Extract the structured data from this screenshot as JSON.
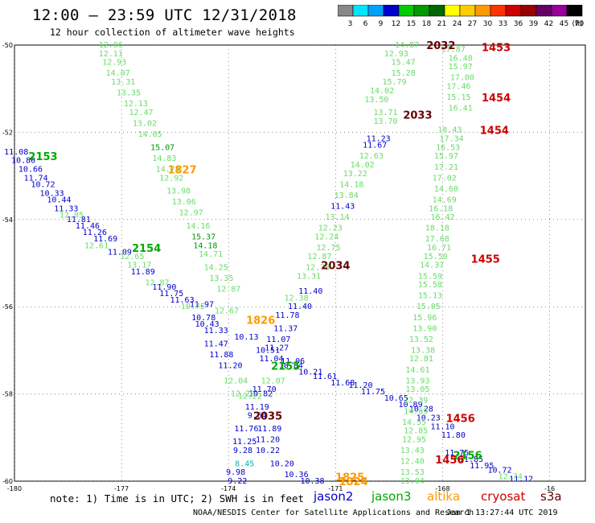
{
  "header": {
    "title": "12:00 – 23:59 UTC 12/31/2018",
    "subtitle": "12 hour collection of altimeter wave heights"
  },
  "colorbar": {
    "unit": "(ft)",
    "ticks": [
      "3",
      "6",
      "9",
      "12",
      "15",
      "18",
      "21",
      "24",
      "27",
      "30",
      "33",
      "36",
      "39",
      "42",
      "45",
      "70"
    ],
    "colors": [
      "#888888",
      "#00e5ff",
      "#00a0ff",
      "#0000cc",
      "#00cc00",
      "#009900",
      "#006600",
      "#ffff00",
      "#ffcc00",
      "#ff9900",
      "#ff3300",
      "#cc0000",
      "#990000",
      "#660066",
      "#990099",
      "#000000"
    ]
  },
  "axes": {
    "lat_labels": [
      "-50",
      "-52",
      "-54",
      "-56",
      "-58",
      "-60"
    ],
    "lon_labels": [
      "-180",
      "-177",
      "-174",
      "-171",
      "-168",
      "-16"
    ]
  },
  "colors": {
    "jason2": "#0000cc",
    "jason3": "#00aa00",
    "altika": "#ff9900",
    "cryosat": "#cc0000",
    "s3a": "#660000",
    "light": "#66dd66"
  },
  "passes": [
    {
      "label": "2153",
      "lat": -52.55,
      "lon": -179.2,
      "sat": "jason3"
    },
    {
      "label": "2154",
      "lat": -54.65,
      "lon": -176.3,
      "sat": "jason3"
    },
    {
      "label": "2155",
      "lat": -57.35,
      "lon": -172.4,
      "sat": "jason3"
    },
    {
      "label": "2156",
      "lat": -59.4,
      "lon": -167.3,
      "sat": "jason3"
    },
    {
      "label": "1827",
      "lat": -52.85,
      "lon": -175.3,
      "sat": "altika"
    },
    {
      "label": "1826",
      "lat": -56.3,
      "lon": -173.1,
      "sat": "altika"
    },
    {
      "label": "1825",
      "lat": -59.9,
      "lon": -170.6,
      "sat": "altika"
    },
    {
      "label": "1824",
      "lat": -60.0,
      "lon": -170.5,
      "sat": "altika"
    },
    {
      "label": "2032",
      "lat": -50.0,
      "lon": -168.05,
      "sat": "s3a"
    },
    {
      "label": "2033",
      "lat": -51.6,
      "lon": -168.7,
      "sat": "s3a"
    },
    {
      "label": "2034",
      "lat": -55.05,
      "lon": -171.0,
      "sat": "s3a"
    },
    {
      "label": "2035",
      "lat": -58.5,
      "lon": -172.9,
      "sat": "s3a"
    },
    {
      "label": "1453",
      "lat": -50.05,
      "lon": -166.5,
      "sat": "cryosat"
    },
    {
      "label": "1454",
      "lat": -51.2,
      "lon": -166.5,
      "sat": "cryosat"
    },
    {
      "label": "1454",
      "lat": -51.95,
      "lon": -166.55,
      "sat": "cryosat"
    },
    {
      "label": "1455",
      "lat": -54.9,
      "lon": -166.8,
      "sat": "cryosat"
    },
    {
      "label": "1456",
      "lat": -58.55,
      "lon": -167.5,
      "sat": "cryosat"
    },
    {
      "label": "1456",
      "lat": -59.5,
      "lon": -167.8,
      "sat": "cryosat"
    }
  ],
  "tracks": [
    {
      "sat": "jason2",
      "color": "#0000cc",
      "points": [
        {
          "v": "11.08",
          "lat": -52.45,
          "lon": -179.95
        },
        {
          "v": "10.80",
          "lat": -52.65,
          "lon": -179.75
        },
        {
          "v": "10.66",
          "lat": -52.85,
          "lon": -179.55
        },
        {
          "v": "11.74",
          "lat": -53.05,
          "lon": -179.4
        },
        {
          "v": "10.72",
          "lat": -53.2,
          "lon": -179.2
        },
        {
          "v": "10.33",
          "lat": -53.4,
          "lon": -178.95
        },
        {
          "v": "10.44",
          "lat": -53.55,
          "lon": -178.75
        },
        {
          "v": "11.33",
          "lat": -53.75,
          "lon": -178.55
        },
        {
          "v": "11.81",
          "lat": -54.0,
          "lon": -178.2
        },
        {
          "v": "11.46",
          "lat": -54.15,
          "lon": -177.95
        },
        {
          "v": "11.26",
          "lat": -54.3,
          "lon": -177.75
        },
        {
          "v": "11.69",
          "lat": -54.45,
          "lon": -177.45
        },
        {
          "v": "11.09",
          "lat": -54.75,
          "lon": -177.05
        },
        {
          "v": "11.89",
          "lat": -55.2,
          "lon": -176.4
        },
        {
          "v": "11.90",
          "lat": -55.55,
          "lon": -175.8
        },
        {
          "v": "11.75",
          "lat": -55.7,
          "lon": -175.6
        },
        {
          "v": "11.63",
          "lat": -55.85,
          "lon": -175.3
        },
        {
          "v": "11.97",
          "lat": -55.95,
          "lon": -174.75
        },
        {
          "v": "10.78",
          "lat": -56.25,
          "lon": -174.7
        },
        {
          "v": "10.43",
          "lat": -56.4,
          "lon": -174.6
        },
        {
          "v": "11.33",
          "lat": -56.55,
          "lon": -174.35
        },
        {
          "v": "10.13",
          "lat": -56.7,
          "lon": -173.5
        },
        {
          "v": "11.47",
          "lat": -56.85,
          "lon": -174.35
        },
        {
          "v": "11.88",
          "lat": -57.1,
          "lon": -174.2
        },
        {
          "v": "11.20",
          "lat": -57.35,
          "lon": -173.95
        },
        {
          "v": "10.51",
          "lat": -57.0,
          "lon": -172.9
        },
        {
          "v": "11.06",
          "lat": -57.25,
          "lon": -172.2
        },
        {
          "v": "10.84",
          "lat": -57.35,
          "lon": -172.25
        },
        {
          "v": "10.21",
          "lat": -57.5,
          "lon": -171.7
        },
        {
          "v": "11.61",
          "lat": -57.6,
          "lon": -171.3
        },
        {
          "v": "11.68",
          "lat": -57.75,
          "lon": -170.8
        },
        {
          "v": "11.20",
          "lat": -57.8,
          "lon": -170.3
        },
        {
          "v": "11.75",
          "lat": -57.95,
          "lon": -169.95
        },
        {
          "v": "10.65",
          "lat": -58.1,
          "lon": -169.3
        },
        {
          "v": "10.89",
          "lat": -58.25,
          "lon": -168.9
        },
        {
          "v": "10.28",
          "lat": -58.35,
          "lon": -168.6
        },
        {
          "v": "10.23",
          "lat": -58.55,
          "lon": -168.4
        },
        {
          "v": "11.10",
          "lat": -58.75,
          "lon": -168.0
        },
        {
          "v": "11.75",
          "lat": -59.35,
          "lon": -167.6
        },
        {
          "v": "11.85",
          "lat": -59.5,
          "lon": -167.2
        },
        {
          "v": "11.95",
          "lat": -59.65,
          "lon": -166.9
        },
        {
          "v": "10.72",
          "lat": -59.75,
          "lon": -166.4
        },
        {
          "v": "11.12",
          "lat": -59.95,
          "lon": -165.8
        },
        {
          "v": "11.23",
          "lat": -52.15,
          "lon": -169.8
        },
        {
          "v": "11.67",
          "lat": -52.3,
          "lon": -169.9
        },
        {
          "v": "11.43",
          "lat": -53.7,
          "lon": -170.8
        },
        {
          "v": "11.40",
          "lat": -55.65,
          "lon": -171.7
        },
        {
          "v": "11.40",
          "lat": -56.0,
          "lon": -172.0
        },
        {
          "v": "11.78",
          "lat": -56.2,
          "lon": -172.35
        },
        {
          "v": "11.37",
          "lat": -56.5,
          "lon": -172.4
        },
        {
          "v": "11.07",
          "lat": -56.75,
          "lon": -172.6
        },
        {
          "v": "11.27",
          "lat": -56.95,
          "lon": -172.65
        },
        {
          "v": "11.04",
          "lat": -57.2,
          "lon": -172.8
        },
        {
          "v": "11.70",
          "lat": -57.9,
          "lon": -173.0
        },
        {
          "v": "10.82",
          "lat": -58.0,
          "lon": -173.1
        },
        {
          "v": "11.19",
          "lat": -58.3,
          "lon": -173.2
        },
        {
          "v": "9.64",
          "lat": -58.5,
          "lon": -173.2
        },
        {
          "v": "11.76",
          "lat": -58.8,
          "lon": -173.5
        },
        {
          "v": "11.25",
          "lat": -59.1,
          "lon": -173.55
        },
        {
          "v": "9.28",
          "lat": -59.3,
          "lon": -173.6
        },
        {
          "v": "9.98",
          "lat": -59.8,
          "lon": -173.8
        },
        {
          "v": "9.22",
          "lat": -60.0,
          "lon": -173.75
        },
        {
          "v": "11.89",
          "lat": -58.8,
          "lon": -172.85
        },
        {
          "v": "11.20",
          "lat": -59.05,
          "lon": -172.9
        },
        {
          "v": "10.22",
          "lat": -59.3,
          "lon": -172.9
        },
        {
          "v": "10.20",
          "lat": -59.6,
          "lon": -172.5
        },
        {
          "v": "10.36",
          "lat": -59.85,
          "lon": -172.1
        },
        {
          "v": "10.38",
          "lat": -60.0,
          "lon": -171.65
        },
        {
          "v": "11.80",
          "lat": -58.95,
          "lon": -167.7
        }
      ]
    },
    {
      "sat": "cyan",
      "color": "#00bbbb",
      "points": [
        {
          "v": "8.45",
          "lat": -59.6,
          "lon": -173.55
        }
      ]
    },
    {
      "sat": "light",
      "color": "#66dd66",
      "points": [
        {
          "v": "12.06",
          "lat": -50.0,
          "lon": -177.3
        },
        {
          "v": "12.11",
          "lat": -50.2,
          "lon": -177.3
        },
        {
          "v": "12.93",
          "lat": -50.4,
          "lon": -177.2
        },
        {
          "v": "14.07",
          "lat": -50.65,
          "lon": -177.1
        },
        {
          "v": "13.31",
          "lat": -50.85,
          "lon": -176.95
        },
        {
          "v": "13.35",
          "lat": -51.1,
          "lon": -176.8
        },
        {
          "v": "12.13",
          "lat": -51.35,
          "lon": -176.6
        },
        {
          "v": "12.47",
          "lat": -51.55,
          "lon": -176.45
        },
        {
          "v": "13.02",
          "lat": -51.8,
          "lon": -176.35
        },
        {
          "v": "14.05",
          "lat": -52.05,
          "lon": -176.2
        },
        {
          "v": "14.83",
          "lat": -52.6,
          "lon": -175.8
        },
        {
          "v": "14.74",
          "lat": -52.85,
          "lon": -175.7
        },
        {
          "v": "12.92",
          "lat": -53.05,
          "lon": -175.6
        },
        {
          "v": "13.98",
          "lat": -53.35,
          "lon": -175.4
        },
        {
          "v": "13.06",
          "lat": -53.6,
          "lon": -175.25
        },
        {
          "v": "12.97",
          "lat": -53.85,
          "lon": -175.05
        },
        {
          "v": "14.16",
          "lat": -54.15,
          "lon": -174.85
        },
        {
          "v": "14.71",
          "lat": -54.8,
          "lon": -174.5
        },
        {
          "v": "14.25",
          "lat": -55.1,
          "lon": -174.35
        },
        {
          "v": "13.35",
          "lat": -55.35,
          "lon": -174.2
        },
        {
          "v": "12.87",
          "lat": -55.6,
          "lon": -174.0
        },
        {
          "v": "12.67",
          "lat": -56.1,
          "lon": -174.05
        },
        {
          "v": "12.85",
          "lat": -53.9,
          "lon": -178.4
        },
        {
          "v": "12.61",
          "lat": -54.6,
          "lon": -177.7
        },
        {
          "v": "12.65",
          "lat": -54.85,
          "lon": -176.7
        },
        {
          "v": "13.17",
          "lat": -55.05,
          "lon": -176.5
        },
        {
          "v": "12.87",
          "lat": -55.45,
          "lon": -176.0
        },
        {
          "v": "10.75",
          "lat": -56.0,
          "lon": -175.0
        },
        {
          "v": "14.87",
          "lat": -50.0,
          "lon": -169.0
        },
        {
          "v": "12.93",
          "lat": -50.2,
          "lon": -169.3
        },
        {
          "v": "15.47",
          "lat": -50.4,
          "lon": -169.1
        },
        {
          "v": "15.28",
          "lat": -50.65,
          "lon": -169.1
        },
        {
          "v": "15.79",
          "lat": -50.85,
          "lon": -169.35
        },
        {
          "v": "14.02",
          "lat": -51.05,
          "lon": -169.7
        },
        {
          "v": "13.50",
          "lat": -51.25,
          "lon": -169.85
        },
        {
          "v": "13.71",
          "lat": -51.55,
          "lon": -169.6
        },
        {
          "v": "13.70",
          "lat": -51.75,
          "lon": -169.6
        },
        {
          "v": "12.63",
          "lat": -52.55,
          "lon": -170.0
        },
        {
          "v": "14.02",
          "lat": -52.75,
          "lon": -170.25
        },
        {
          "v": "13.22",
          "lat": -52.95,
          "lon": -170.45
        },
        {
          "v": "14.18",
          "lat": -53.2,
          "lon": -170.55
        },
        {
          "v": "13.84",
          "lat": -53.45,
          "lon": -170.7
        },
        {
          "v": "13.14",
          "lat": -53.95,
          "lon": -170.95
        },
        {
          "v": "12.23",
          "lat": -54.2,
          "lon": -171.15
        },
        {
          "v": "12.24",
          "lat": -54.4,
          "lon": -171.25
        },
        {
          "v": "12.75",
          "lat": -54.65,
          "lon": -171.2
        },
        {
          "v": "12.87",
          "lat": -54.85,
          "lon": -171.45
        },
        {
          "v": "12.78",
          "lat": -55.1,
          "lon": -171.5
        },
        {
          "v": "13.31",
          "lat": -55.3,
          "lon": -171.75
        },
        {
          "v": "12.38",
          "lat": -55.8,
          "lon": -172.1
        },
        {
          "v": "12.04",
          "lat": -57.7,
          "lon": -173.8
        },
        {
          "v": "12.26",
          "lat": -58.0,
          "lon": -173.6
        },
        {
          "v": "12.07",
          "lat": -57.7,
          "lon": -172.75
        },
        {
          "v": "12.22",
          "lat": -58.05,
          "lon": -173.4
        },
        {
          "v": "17.87",
          "lat": -50.1,
          "lon": -167.7
        },
        {
          "v": "16.48",
          "lat": -50.3,
          "lon": -167.5
        },
        {
          "v": "15.97",
          "lat": -50.5,
          "lon": -167.5
        },
        {
          "v": "17.00",
          "lat": -50.75,
          "lon": -167.45
        },
        {
          "v": "17.46",
          "lat": -50.95,
          "lon": -167.55
        },
        {
          "v": "15.15",
          "lat": -51.2,
          "lon": -167.55
        },
        {
          "v": "16.41",
          "lat": -51.45,
          "lon": -167.5
        },
        {
          "v": "18.43",
          "lat": -51.95,
          "lon": -167.8
        },
        {
          "v": "17.34",
          "lat": -52.15,
          "lon": -167.75
        },
        {
          "v": "16.53",
          "lat": -52.35,
          "lon": -167.85
        },
        {
          "v": "15.97",
          "lat": -52.55,
          "lon": -167.9
        },
        {
          "v": "17.21",
          "lat": -52.8,
          "lon": -167.9
        },
        {
          "v": "17.02",
          "lat": -53.05,
          "lon": -167.95
        },
        {
          "v": "14.60",
          "lat": -53.3,
          "lon": -167.9
        },
        {
          "v": "14.69",
          "lat": -53.55,
          "lon": -167.95
        },
        {
          "v": "16.18",
          "lat": -53.75,
          "lon": -168.05
        },
        {
          "v": "16.42",
          "lat": -53.95,
          "lon": -168.0
        },
        {
          "v": "18.18",
          "lat": -54.2,
          "lon": -168.15
        },
        {
          "v": "17.68",
          "lat": -54.45,
          "lon": -168.15
        },
        {
          "v": "16.71",
          "lat": -54.65,
          "lon": -168.1
        },
        {
          "v": "15.50",
          "lat": -54.85,
          "lon": -168.2
        },
        {
          "v": "14.37",
          "lat": -55.05,
          "lon": -168.3
        },
        {
          "v": "15.59",
          "lat": -55.3,
          "lon": -168.35
        },
        {
          "v": "15.58",
          "lat": -55.5,
          "lon": -168.35
        },
        {
          "v": "15.13",
          "lat": -55.75,
          "lon": -168.35
        },
        {
          "v": "15.05",
          "lat": -56.0,
          "lon": -168.4
        },
        {
          "v": "15.96",
          "lat": -56.25,
          "lon": -168.5
        },
        {
          "v": "13.90",
          "lat": -56.5,
          "lon": -168.5
        },
        {
          "v": "13.52",
          "lat": -56.75,
          "lon": -168.6
        },
        {
          "v": "13.38",
          "lat": -57.0,
          "lon": -168.55
        },
        {
          "v": "12.81",
          "lat": -57.2,
          "lon": -168.6
        },
        {
          "v": "14.61",
          "lat": -57.45,
          "lon": -168.7
        },
        {
          "v": "13.93",
          "lat": -57.7,
          "lon": -168.7
        },
        {
          "v": "13.05",
          "lat": -57.9,
          "lon": -168.7
        },
        {
          "v": "12.39",
          "lat": -58.15,
          "lon": -168.75
        },
        {
          "v": "14.89",
          "lat": -58.4,
          "lon": -168.75
        },
        {
          "v": "14.55",
          "lat": -58.65,
          "lon": -168.8
        },
        {
          "v": "12.85",
          "lat": -58.85,
          "lon": -168.75
        },
        {
          "v": "12.95",
          "lat": -59.05,
          "lon": -168.8
        },
        {
          "v": "13.43",
          "lat": -59.3,
          "lon": -168.85
        },
        {
          "v": "12.40",
          "lat": -59.55,
          "lon": -168.85
        },
        {
          "v": "13.53",
          "lat": -59.8,
          "lon": -168.85
        },
        {
          "v": "13.04",
          "lat": -60.0,
          "lon": -168.85
        },
        {
          "v": "12.74",
          "lat": -59.9,
          "lon": -166.1
        }
      ]
    },
    {
      "sat": "jason3",
      "color": "#009900",
      "points": [
        {
          "v": "15.07",
          "lat": -52.35,
          "lon": -175.85
        },
        {
          "v": "15.37",
          "lat": -54.4,
          "lon": -174.7
        },
        {
          "v": "14.18",
          "lat": -54.6,
          "lon": -174.65
        }
      ]
    }
  ],
  "legend": {
    "note": "note: 1) Time is in UTC; 2) SWH is in feet",
    "items": [
      {
        "label": "jason2",
        "color": "#0000cc"
      },
      {
        "label": "jason3",
        "color": "#00aa00"
      },
      {
        "label": "altika",
        "color": "#ff9900"
      },
      {
        "label": "cryosat",
        "color": "#cc0000"
      },
      {
        "label": "s3a",
        "color": "#660000"
      }
    ]
  },
  "footer": {
    "credit": "NOAA/NESDIS Center for Satellite Applications and Research",
    "timestamp": "Jan  1 13:27:44 UTC 2019"
  }
}
